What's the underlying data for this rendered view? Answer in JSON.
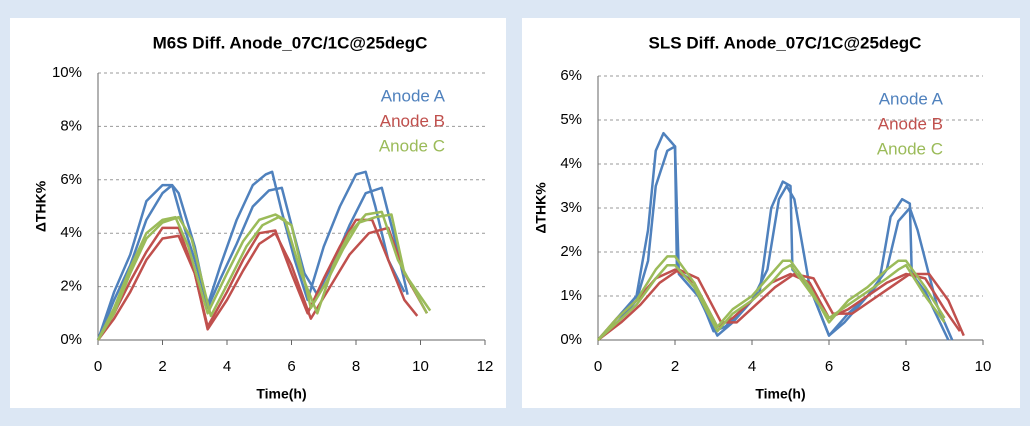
{
  "chart_data": [
    {
      "type": "line",
      "title": "M6S Diff. Anode_07C/1C@25degC",
      "x_label": "Time(h)",
      "y_label": "ΔTHK%",
      "xlim": [
        0,
        12
      ],
      "xticks": [
        0,
        2,
        4,
        6,
        8,
        10,
        12
      ],
      "ylim": [
        0,
        10
      ],
      "yticks": [
        {
          "value": 0,
          "label": "0%"
        },
        {
          "value": 2,
          "label": "2%"
        },
        {
          "value": 4,
          "label": "4%"
        },
        {
          "value": 6,
          "label": "6%"
        },
        {
          "value": 8,
          "label": "8%"
        },
        {
          "value": 10,
          "label": "10%"
        }
      ],
      "grid": true,
      "legend": "top-right",
      "series": [
        {
          "name": "Anode A",
          "color": "#4f81bd",
          "curves": [
            {
              "x": [
                0,
                0.5,
                1,
                1.5,
                2,
                2.3,
                2.6,
                3,
                3.4,
                3.8,
                4.3,
                4.8,
                5.2,
                5.4,
                5.7,
                6.1,
                6.5,
                7,
                7.5,
                8,
                8.3,
                8.6,
                9,
                9.5
              ],
              "values": [
                0,
                1.8,
                3.2,
                5.2,
                5.8,
                5.8,
                4.5,
                3,
                1.3,
                2.8,
                4.5,
                5.8,
                6.2,
                6.3,
                4.8,
                3,
                1.5,
                3.5,
                5,
                6.2,
                6.3,
                5,
                3,
                1.8
              ]
            },
            {
              "x": [
                0,
                0.5,
                1,
                1.5,
                2,
                2.3,
                2.5,
                3,
                3.4,
                3.8,
                4.3,
                4.8,
                5.3,
                5.7,
                6,
                6.4,
                6.8,
                7.3,
                7.8,
                8.3,
                8.8,
                9.2,
                9.6
              ],
              "values": [
                0,
                1.5,
                2.8,
                4.5,
                5.5,
                5.8,
                5.5,
                3.5,
                1.2,
                2.3,
                3.6,
                5,
                5.6,
                5.7,
                4.3,
                2.5,
                1.7,
                2.9,
                4.3,
                5.5,
                5.7,
                3.8,
                1.7
              ]
            }
          ]
        },
        {
          "name": "Anode B",
          "color": "#c0504d",
          "curves": [
            {
              "x": [
                0,
                0.5,
                1,
                1.5,
                2,
                2.5,
                3,
                3.4,
                4,
                4.5,
                5,
                5.5,
                6,
                6.5,
                7,
                7.5,
                8,
                8.5,
                9,
                9.5,
                9.9
              ],
              "values": [
                0,
                1,
                2.2,
                3.3,
                4.2,
                4.2,
                2.5,
                0.5,
                1.8,
                3,
                4,
                4.1,
                2.5,
                1,
                2.3,
                3.5,
                4.5,
                4.5,
                3,
                1.5,
                0.9
              ]
            },
            {
              "x": [
                0,
                0.5,
                1,
                1.5,
                2,
                2.5,
                3,
                3.4,
                4,
                4.5,
                5,
                5.5,
                6,
                6.6,
                7.2,
                7.8,
                8.4,
                9,
                9.5,
                10.2
              ],
              "values": [
                0,
                0.8,
                1.8,
                3,
                3.8,
                3.9,
                2.5,
                0.4,
                1.5,
                2.6,
                3.6,
                4,
                2.8,
                0.8,
                2,
                3.2,
                4,
                4.2,
                2.5,
                1
              ]
            }
          ]
        },
        {
          "name": "Anode C",
          "color": "#9bbb59",
          "curves": [
            {
              "x": [
                0,
                0.5,
                1,
                1.5,
                2,
                2.4,
                2.8,
                3.4,
                4,
                4.5,
                5,
                5.5,
                5.8,
                6.3,
                6.8,
                7.3,
                7.8,
                8.3,
                8.8,
                9.3,
                10.2
              ],
              "values": [
                0,
                1.2,
                2.7,
                4,
                4.5,
                4.6,
                3.5,
                1,
                2.5,
                3.7,
                4.5,
                4.7,
                4.5,
                2.5,
                1,
                2.8,
                4,
                4.7,
                4.8,
                3,
                1
              ]
            },
            {
              "x": [
                0,
                0.5,
                1,
                1.5,
                2,
                2.5,
                2.9,
                3.5,
                4.1,
                4.6,
                5.1,
                5.6,
                6,
                6.6,
                7.1,
                7.6,
                8.1,
                8.6,
                9.1,
                9.5,
                10.3
              ],
              "values": [
                0,
                1,
                2.5,
                3.8,
                4.4,
                4.6,
                3.8,
                0.9,
                2.3,
                3.5,
                4.3,
                4.6,
                4.3,
                1.2,
                2.2,
                3.4,
                4.4,
                4.6,
                4.7,
                2.5,
                1.1
              ]
            }
          ]
        }
      ]
    },
    {
      "type": "line",
      "title": "SLS Diff. Anode_07C/1C@25degC",
      "x_label": "Time(h)",
      "y_label": "ΔTHK%",
      "xlim": [
        0,
        10
      ],
      "xticks": [
        0,
        2,
        4,
        6,
        8,
        10
      ],
      "ylim": [
        0,
        6
      ],
      "yticks": [
        {
          "value": 0,
          "label": "0%"
        },
        {
          "value": 1,
          "label": "1%"
        },
        {
          "value": 2,
          "label": "2%"
        },
        {
          "value": 3,
          "label": "3%"
        },
        {
          "value": 4,
          "label": "4%"
        },
        {
          "value": 5,
          "label": "5%"
        },
        {
          "value": 6,
          "label": "6%"
        }
      ],
      "grid": true,
      "legend": "top-right",
      "series": [
        {
          "name": "Anode A",
          "color": "#4f81bd",
          "curves": [
            {
              "x": [
                0,
                0.5,
                1,
                1.3,
                1.5,
                1.7,
                1.9,
                2,
                2.05,
                2.5,
                3,
                3.3,
                3.8,
                4.2,
                4.5,
                4.8,
                5,
                5.05,
                5.5,
                6,
                6.4,
                6.8,
                7.3,
                7.6,
                7.9,
                8.1,
                8.15,
                8.5,
                9.1
              ],
              "values": [
                0,
                0.5,
                1,
                2.5,
                4.3,
                4.7,
                4.5,
                4.4,
                1.6,
                1.3,
                0.2,
                0.3,
                0.7,
                1.1,
                3,
                3.6,
                3.5,
                1.6,
                1.2,
                0.1,
                0.4,
                0.8,
                1.3,
                2.8,
                3.2,
                3.1,
                1.5,
                1.1,
                0
              ]
            },
            {
              "x": [
                0,
                0.5,
                1,
                1.3,
                1.5,
                1.8,
                2,
                2.1,
                2.6,
                3.1,
                3.5,
                4,
                4.4,
                4.7,
                4.9,
                5.1,
                5.5,
                6,
                6.5,
                7,
                7.5,
                7.8,
                8.1,
                8.3,
                8.8,
                9.2
              ],
              "values": [
                0,
                0.4,
                0.9,
                1.8,
                3.5,
                4.3,
                4.4,
                1.5,
                1,
                0.1,
                0.4,
                0.9,
                1.6,
                3.2,
                3.5,
                3.2,
                1.2,
                0.1,
                0.6,
                1,
                1.6,
                2.7,
                3,
                2.5,
                0.8,
                0
              ]
            }
          ]
        },
        {
          "name": "Anode B",
          "color": "#c0504d",
          "curves": [
            {
              "x": [
                0,
                0.5,
                1,
                1.5,
                2,
                2.5,
                3.1,
                3.5,
                4,
                4.5,
                5,
                5.5,
                6,
                6.5,
                7,
                7.5,
                8,
                8.5,
                9,
                9.4
              ],
              "values": [
                0,
                0.5,
                0.9,
                1.4,
                1.6,
                1.3,
                0.3,
                0.5,
                0.9,
                1.3,
                1.5,
                1.3,
                0.5,
                0.7,
                1,
                1.3,
                1.5,
                1.4,
                0.7,
                0.2
              ]
            },
            {
              "x": [
                0,
                0.6,
                1.1,
                1.6,
                2.1,
                2.6,
                3.2,
                3.6,
                4.1,
                4.6,
                5.1,
                5.6,
                6.1,
                6.6,
                7.1,
                7.6,
                8.1,
                8.6,
                9.1,
                9.5
              ],
              "values": [
                0,
                0.4,
                0.8,
                1.3,
                1.6,
                1.4,
                0.4,
                0.4,
                0.8,
                1.2,
                1.5,
                1.4,
                0.6,
                0.6,
                0.9,
                1.2,
                1.5,
                1.5,
                0.9,
                0.1
              ]
            }
          ]
        },
        {
          "name": "Anode C",
          "color": "#9bbb59",
          "curves": [
            {
              "x": [
                0,
                0.5,
                1,
                1.5,
                1.8,
                2,
                2.5,
                3.1,
                3.5,
                4,
                4.5,
                4.8,
                5,
                5.5,
                6,
                6.5,
                7,
                7.5,
                7.8,
                8,
                8.5,
                9
              ],
              "values": [
                0,
                0.5,
                0.9,
                1.6,
                1.9,
                1.9,
                1.3,
                0.3,
                0.7,
                1,
                1.5,
                1.8,
                1.8,
                1.2,
                0.4,
                0.9,
                1.2,
                1.6,
                1.8,
                1.8,
                1.2,
                0.5
              ]
            },
            {
              "x": [
                0,
                0.5,
                1,
                1.5,
                1.8,
                2,
                2.5,
                3.1,
                3.5,
                4,
                4.5,
                4.8,
                5,
                5.5,
                6,
                6.5,
                7,
                7.5,
                7.8,
                8,
                8.5,
                9
              ],
              "values": [
                0,
                0.4,
                0.8,
                1.4,
                1.7,
                1.7,
                1.2,
                0.2,
                0.6,
                0.9,
                1.3,
                1.6,
                1.7,
                1.1,
                0.5,
                0.8,
                1.1,
                1.4,
                1.6,
                1.7,
                1,
                0.4
              ]
            }
          ]
        }
      ]
    }
  ]
}
